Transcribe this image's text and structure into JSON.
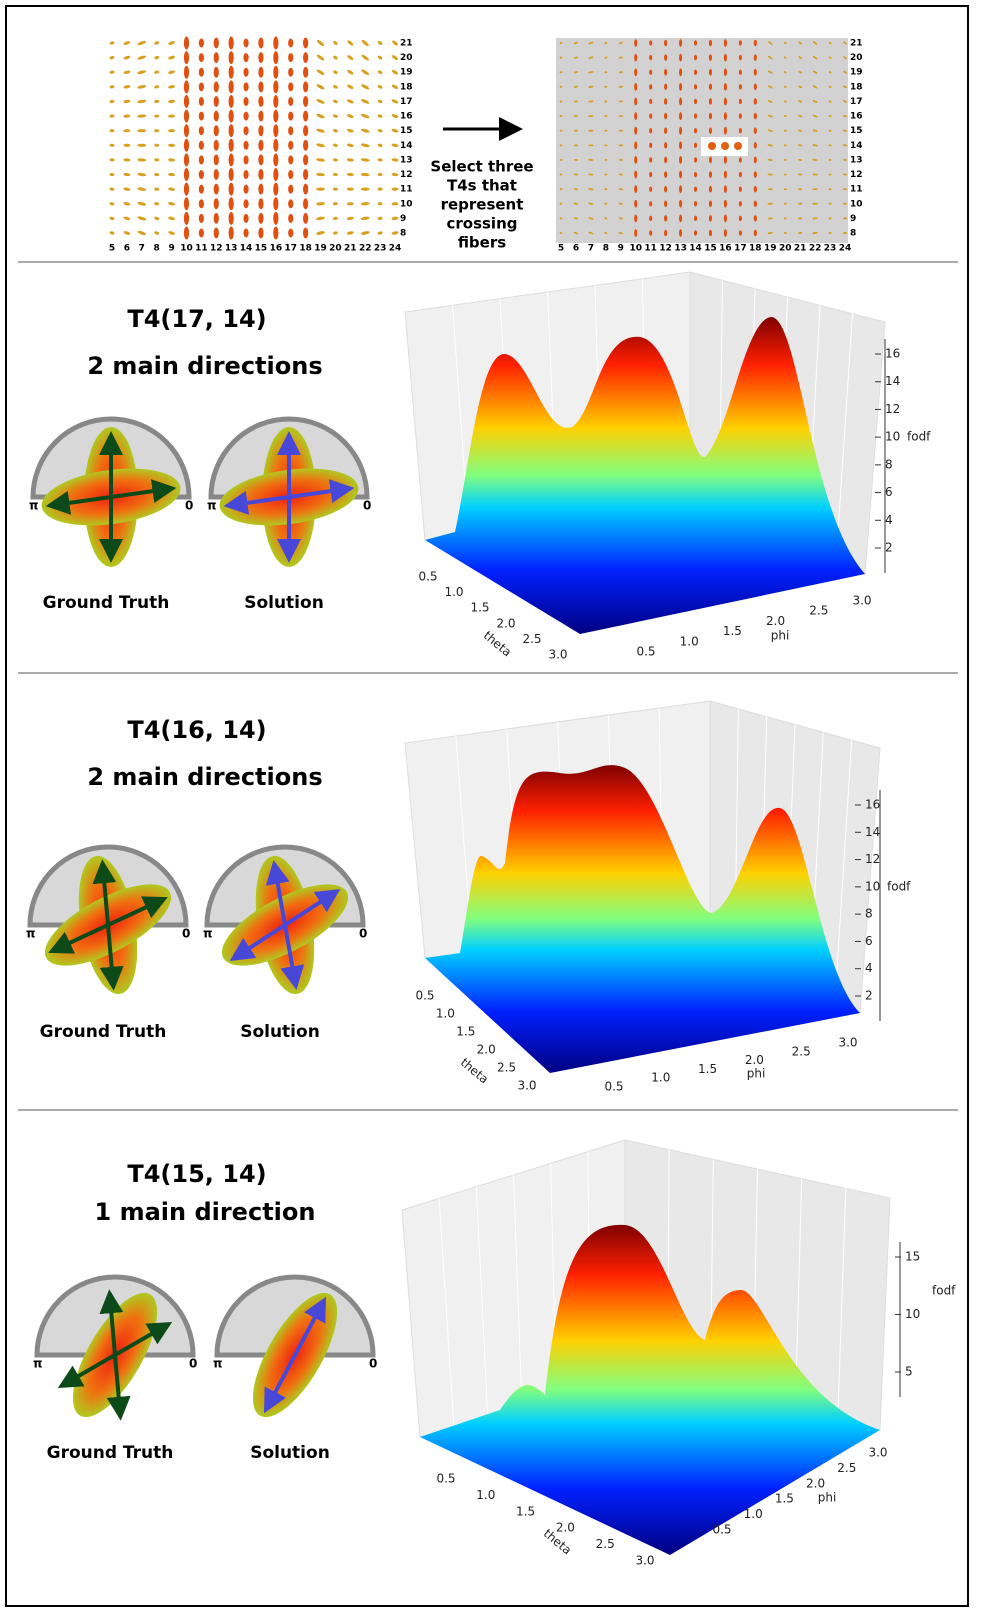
{
  "top": {
    "column_labels": [
      "5",
      "6",
      "7",
      "8",
      "9",
      "10",
      "11",
      "12",
      "13",
      "14",
      "15",
      "16",
      "17",
      "18",
      "19",
      "20",
      "21",
      "22",
      "23",
      "24"
    ],
    "row_labels": [
      "21",
      "20",
      "19",
      "18",
      "17",
      "16",
      "15",
      "14",
      "13",
      "12",
      "11",
      "10",
      "9",
      "8"
    ],
    "caption_lines": [
      "Select three",
      "T4s that",
      "represent",
      "crossing",
      "fibers"
    ]
  },
  "panels": [
    {
      "title": "T4(17, 14)",
      "subtitle": "2 main directions",
      "glyphs": [
        {
          "label": "Ground Truth",
          "left_mark": "π",
          "right_mark": "0"
        },
        {
          "label": "Solution",
          "left_mark": "π",
          "right_mark": "0"
        }
      ],
      "plot": {
        "theta_label": "theta",
        "phi_label": "phi",
        "fodf_label": "fodf",
        "theta_ticks": [
          "0.5",
          "1.0",
          "1.5",
          "2.0",
          "2.5",
          "3.0"
        ],
        "phi_ticks": [
          "0.5",
          "1.0",
          "1.5",
          "2.0",
          "2.5",
          "3.0"
        ],
        "fodf_ticks": [
          "2",
          "4",
          "6",
          "8",
          "10",
          "12",
          "14",
          "16"
        ]
      }
    },
    {
      "title": "T4(16, 14)",
      "subtitle": "2 main directions",
      "glyphs": [
        {
          "label": "Ground Truth",
          "left_mark": "π",
          "right_mark": "0"
        },
        {
          "label": "Solution",
          "left_mark": "π",
          "right_mark": "0"
        }
      ],
      "plot": {
        "theta_label": "theta",
        "phi_label": "phi",
        "fodf_label": "fodf",
        "theta_ticks": [
          "0.5",
          "1.0",
          "1.5",
          "2.0",
          "2.5",
          "3.0"
        ],
        "phi_ticks": [
          "0.5",
          "1.0",
          "1.5",
          "2.0",
          "2.5",
          "3.0"
        ],
        "fodf_ticks": [
          "2",
          "4",
          "6",
          "8",
          "10",
          "12",
          "14",
          "16"
        ]
      }
    },
    {
      "title": "T4(15, 14)",
      "subtitle": "1 main direction",
      "glyphs": [
        {
          "label": "Ground Truth",
          "left_mark": "π",
          "right_mark": "0"
        },
        {
          "label": "Solution",
          "left_mark": "π",
          "right_mark": "0"
        }
      ],
      "plot": {
        "theta_label": "theta",
        "phi_label": "phi",
        "fodf_label": "fodf",
        "theta_ticks": [
          "0.5",
          "1.0",
          "1.5",
          "2.0",
          "2.5",
          "3.0"
        ],
        "phi_ticks": [
          "0.5",
          "1.0",
          "1.5",
          "2.0",
          "2.5",
          "3.0"
        ],
        "fodf_ticks": [
          "5",
          "10",
          "15"
        ]
      }
    }
  ]
}
